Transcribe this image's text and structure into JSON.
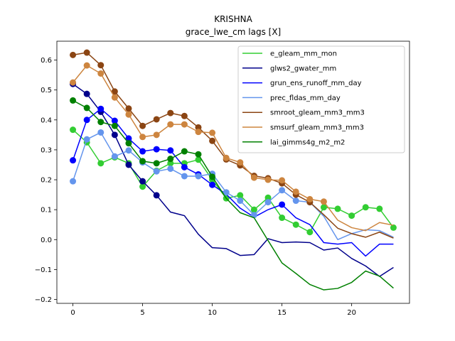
{
  "chart_data": {
    "type": "line",
    "title": "KRISHNA",
    "subtitle": "grace_lwe_cm lags [X]",
    "xlabel": "",
    "ylabel": "",
    "xlim": [
      -1.15,
      24.15
    ],
    "ylim": [
      -0.213,
      0.663
    ],
    "xticks": [
      0,
      5,
      10,
      15,
      20
    ],
    "yticks": [
      -0.2,
      -0.1,
      0.0,
      0.1,
      0.2,
      0.3,
      0.4,
      0.5,
      0.6
    ],
    "ytick_labels": [
      "−0.2",
      "−0.1",
      "0.0",
      "0.1",
      "0.2",
      "0.3",
      "0.4",
      "0.5",
      "0.6"
    ],
    "grid": false,
    "legend_position": "upper right",
    "x": [
      0,
      1,
      2,
      3,
      4,
      5,
      6,
      7,
      8,
      9,
      10,
      11,
      12,
      13,
      14,
      15,
      16,
      17,
      18,
      19,
      20,
      21,
      22,
      23
    ],
    "series": [
      {
        "name": "e_gleam_mm_mon",
        "color": "#32cd32",
        "values": [
          0.367,
          0.325,
          0.255,
          0.275,
          0.255,
          0.177,
          0.23,
          0.255,
          0.255,
          0.267,
          0.2,
          0.138,
          0.148,
          0.1,
          0.14,
          0.073,
          0.05,
          0.025,
          0.108,
          0.103,
          0.08,
          0.108,
          0.103,
          0.04
        ],
        "markers": [
          0,
          1,
          2,
          3,
          4,
          5,
          6,
          7,
          8,
          9,
          10,
          11,
          12,
          13,
          14,
          15,
          16,
          17,
          18,
          19,
          20,
          21,
          22,
          23
        ]
      },
      {
        "name": "glws2_gwater_mm",
        "color": "#00008b",
        "values": [
          0.52,
          0.487,
          0.427,
          0.35,
          0.25,
          0.195,
          0.148,
          0.092,
          0.08,
          0.018,
          -0.027,
          -0.03,
          -0.053,
          -0.05,
          0.003,
          -0.01,
          -0.008,
          -0.01,
          -0.035,
          -0.028,
          -0.063,
          -0.088,
          -0.123,
          -0.093
        ],
        "markers": [
          0,
          1,
          2,
          3,
          4,
          5,
          6
        ]
      },
      {
        "name": "grun_ens_runoff_mm_day",
        "color": "#0000ff",
        "values": [
          0.265,
          0.4,
          0.437,
          0.397,
          0.338,
          0.295,
          0.302,
          0.298,
          0.242,
          0.218,
          0.183,
          0.152,
          0.105,
          0.075,
          0.1,
          0.117,
          0.073,
          0.05,
          -0.01,
          -0.015,
          -0.01,
          -0.055,
          -0.015,
          -0.015
        ],
        "markers": [
          0,
          1,
          2,
          3,
          4,
          5,
          6,
          7,
          8,
          9,
          10,
          15
        ]
      },
      {
        "name": "prec_fldas_mm_day",
        "color": "#6495ed",
        "values": [
          0.195,
          0.335,
          0.358,
          0.278,
          0.298,
          0.258,
          0.228,
          0.237,
          0.212,
          0.212,
          0.22,
          0.158,
          0.13,
          0.082,
          0.125,
          0.165,
          0.13,
          0.125,
          0.078,
          0.0,
          0.02,
          0.033,
          0.03,
          0.008
        ],
        "markers": [
          0,
          1,
          2,
          3,
          4,
          5,
          6,
          7,
          8,
          9,
          10,
          11,
          12,
          13,
          14,
          15,
          16,
          17
        ]
      },
      {
        "name": "smroot_gleam_mm3_mm3",
        "color": "#8b4513",
        "values": [
          0.617,
          0.625,
          0.583,
          0.495,
          0.438,
          0.38,
          0.402,
          0.423,
          0.413,
          0.375,
          0.33,
          0.268,
          0.248,
          0.213,
          0.205,
          0.188,
          0.15,
          0.125,
          0.083,
          0.038,
          0.02,
          0.008,
          0.025,
          0.005
        ],
        "markers": [
          0,
          1,
          2,
          3,
          4,
          5,
          6,
          7,
          8,
          9,
          10,
          11,
          12,
          13,
          14,
          15,
          16,
          17
        ]
      },
      {
        "name": "smsurf_gleam_mm3_mm3",
        "color": "#cd853f",
        "values": [
          0.525,
          0.582,
          0.555,
          0.475,
          0.418,
          0.343,
          0.35,
          0.385,
          0.385,
          0.36,
          0.357,
          0.273,
          0.258,
          0.207,
          0.2,
          0.198,
          0.16,
          0.135,
          0.127,
          0.065,
          0.04,
          0.03,
          0.057,
          0.048
        ],
        "markers": [
          0,
          1,
          2,
          3,
          4,
          5,
          6,
          7,
          8,
          9,
          10,
          11,
          12,
          13,
          14,
          15,
          16,
          17,
          18
        ]
      },
      {
        "name": "lai_gimms4g_m2_m2",
        "color": "#008000",
        "values": [
          0.465,
          0.44,
          0.393,
          0.38,
          0.322,
          0.262,
          0.255,
          0.27,
          0.295,
          0.285,
          0.21,
          0.138,
          0.09,
          0.073,
          -0.003,
          -0.078,
          -0.113,
          -0.15,
          -0.168,
          -0.163,
          -0.143,
          -0.105,
          -0.122,
          -0.162
        ],
        "markers": [
          0,
          1,
          2,
          3,
          4,
          5,
          6,
          7,
          8,
          9,
          10
        ]
      }
    ]
  }
}
